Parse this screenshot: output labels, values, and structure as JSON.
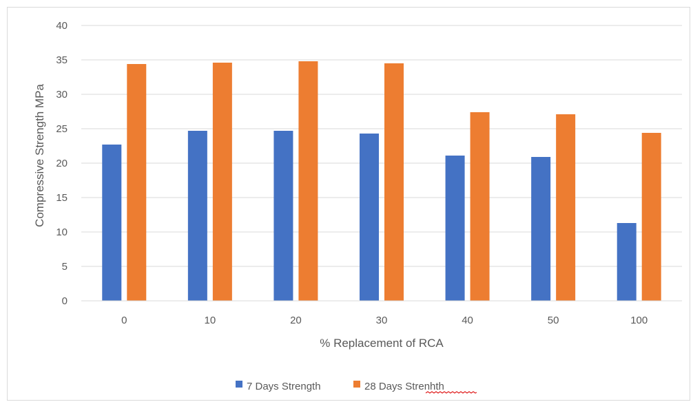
{
  "chart_data": {
    "type": "bar",
    "title": "",
    "xlabel": "% Replacement of RCA",
    "ylabel": "Compressive Strength MPa",
    "ylim": [
      0,
      40
    ],
    "yticks": [
      0,
      5,
      10,
      15,
      20,
      25,
      30,
      35,
      40
    ],
    "categories": [
      "0",
      "10",
      "20",
      "30",
      "40",
      "50",
      "100"
    ],
    "series": [
      {
        "name": "7 Days Strength",
        "color": "#4472C4",
        "values": [
          22.7,
          24.7,
          24.7,
          24.3,
          21.1,
          20.9,
          11.3
        ]
      },
      {
        "name": "28 Days Strenhth",
        "color": "#ED7D31",
        "values": [
          34.4,
          34.6,
          34.8,
          34.5,
          27.4,
          27.1,
          24.4
        ]
      }
    ],
    "grid": true,
    "legend_position": "bottom"
  }
}
